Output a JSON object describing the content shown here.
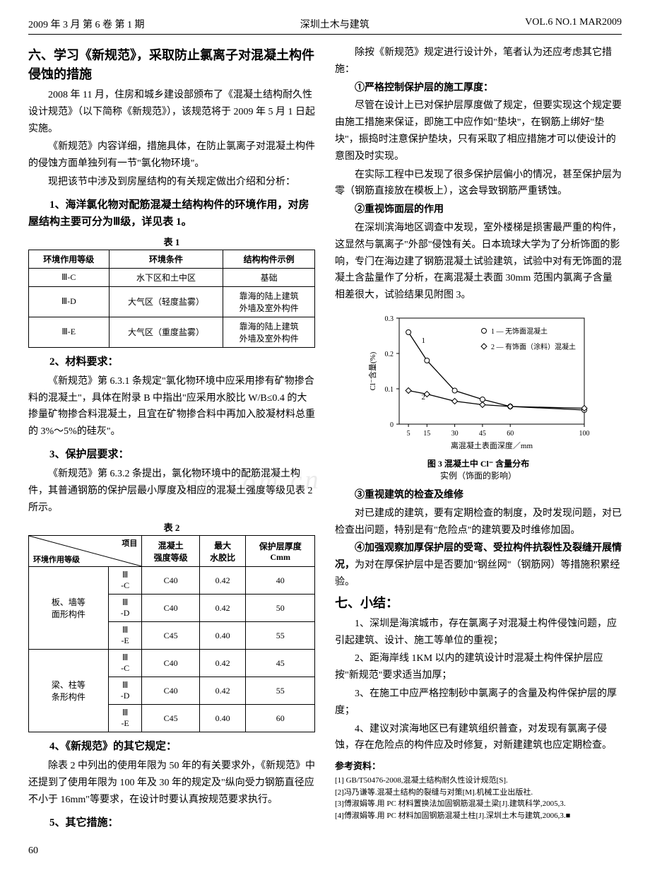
{
  "header": {
    "left": "2009 年 3 月  第 6 卷  第 1 期",
    "center": "深圳土木与建筑",
    "right": "VOL.6  NO.1  MAR2009"
  },
  "left": {
    "h2a": "六、学习《新规范》，采取防止氯离子对混凝土构件侵蚀的措施",
    "p1": "2008 年 11 月，住房和城乡建设部颁布了《混凝土结构耐久性设计规范》（以下简称《新规范》），该规范将于 2009 年 5 月 1 日起实施。",
    "p2": "《新规范》内容详细，措施具体，在防止氯离子对混凝土构件的侵蚀方面单独列有一节\"氯化物环境\"。",
    "p3": "现把该节中涉及到房屋结构的有关规定做出介绍和分析：",
    "sect1": "1、海洋氯化物对配筋混凝土结构构件的环境作用，对房屋结构主要可分为Ⅲ级，详见表 1。",
    "table1": {
      "caption": "表 1",
      "header": [
        "环境作用等级",
        "环境条件",
        "结构构件示例"
      ],
      "rows": [
        [
          "Ⅲ-C",
          "水下区和土中区",
          "基础"
        ],
        [
          "Ⅲ-D",
          "大气区（轻度盐雾）",
          "靠海的陆上建筑\n外墙及室外构件"
        ],
        [
          "Ⅲ-E",
          "大气区（重度盐雾）",
          "靠海的陆上建筑\n外墙及室外构件"
        ]
      ]
    },
    "sect2": "2、材料要求：",
    "p4": "《新规范》第 6.3.1 条规定\"氯化物环境中应采用掺有矿物掺合料的混凝土\"，具体在附录 B 中指出\"应采用水胶比 W/B≤0.4 的大掺量矿物掺合料混凝土，且宜在矿物掺合料中再加入胶凝材料总重的 3%～5%的硅灰\"。",
    "sect3": "3、保护层要求：",
    "p5": "《新规范》第 6.3.2 条提出，氯化物环境中的配筋混凝土构件，其普通钢筋的保护层最小厚度及相应的混凝土强度等级见表 2 所示。",
    "table2": {
      "caption": "表 2",
      "diag": {
        "top": "项目",
        "bottom": "环境作用等级"
      },
      "cols": [
        "混凝土\n强度等级",
        "最大\n水胶比",
        "保护层厚度\nCmm"
      ],
      "groups": [
        {
          "name": "板、墙等\n面形构件",
          "rows": [
            [
              "Ⅲ\n-C",
              "C40",
              "0.42",
              "40"
            ],
            [
              "Ⅲ\n-D",
              "C40",
              "0.42",
              "50"
            ],
            [
              "Ⅲ\n-E",
              "C45",
              "0.40",
              "55"
            ]
          ]
        },
        {
          "name": "梁、柱等\n条形构件",
          "rows": [
            [
              "Ⅲ\n-C",
              "C40",
              "0.42",
              "45"
            ],
            [
              "Ⅲ\n-D",
              "C40",
              "0.42",
              "55"
            ],
            [
              "Ⅲ\n-E",
              "C45",
              "0.40",
              "60"
            ]
          ]
        }
      ]
    },
    "sect4": "4、《新规范》的其它规定：",
    "p6": "除表 2 中列出的使用年限为 50 年的有关要求外，《新规范》中还提到了使用年限为 100 年及 30 年的规定及\"纵向受力钢筋直径应不小于 16mm\"等要求，在设计时要认真按规范要求执行。",
    "sect5": "5、其它措施："
  },
  "right": {
    "p1": "除按《新规范》规定进行设计外，笔者认为还应考虑其它措施：",
    "sub1": "①严格控制保护层的施工厚度：",
    "p2": "尽管在设计上已对保护层厚度做了规定，但要实现这个规定要由施工措施来保证，即施工中应作如\"垫块\"，在钢筋上绑好\"垫块\"，振捣时注意保护垫块，只有采取了相应措施才可以使设计的意图及时实现。",
    "p3": "在实际工程中已发现了很多保护层偏小的情况，甚至保护层为零（钢筋直接放在模板上），这会导致钢筋严重锈蚀。",
    "sub2": "②重视饰面层的作用",
    "p4": "在深圳滨海地区调查中发现，室外楼梯是损害最严重的构件，这显然与氯离子\"外部\"侵蚀有关。日本琉球大学为了分析饰面的影响，专门在海边建了钢筋混凝土试验建筑，试验中对有无饰面的混凝土含盐量作了分析，在离混凝土表面 30mm 范围内氯离子含量相差很大，试验结果见附图 3。",
    "fig3": {
      "caption": "图 3 混凝土中 Cl⁻ 含量分布",
      "subcaption": "实例（饰面的影响）",
      "xlabel": "离混凝土表面深度／mm",
      "ylabel": "Cl⁻含量(%)",
      "legend": [
        "1 — 无饰面混凝土",
        "2 — 有饰面（涂料）混凝土"
      ],
      "line_color": "#000",
      "bg": "#ffffff",
      "xlim": [
        0,
        100
      ],
      "ylim": [
        0,
        0.3
      ],
      "xticks": [
        5,
        15,
        30,
        45,
        60,
        100
      ],
      "yticks": [
        0,
        0.1,
        0.2,
        0.3
      ],
      "series": [
        {
          "name": "1",
          "marker": "o",
          "points": [
            [
              5,
              0.26
            ],
            [
              15,
              0.18
            ],
            [
              30,
              0.095
            ],
            [
              45,
              0.07
            ],
            [
              60,
              0.05
            ],
            [
              100,
              0.04
            ]
          ]
        },
        {
          "name": "2",
          "marker": "d",
          "points": [
            [
              5,
              0.095
            ],
            [
              15,
              0.085
            ],
            [
              30,
              0.065
            ],
            [
              45,
              0.055
            ],
            [
              60,
              0.05
            ],
            [
              100,
              0.045
            ]
          ]
        }
      ]
    },
    "sub3": "③重视建筑的检查及维修",
    "p5": "对已建成的建筑，要有定期检查的制度，及时发现问题，对已检查出问题，特别是有\"危险点\"的建筑要及时维修加固。",
    "sub4": "④加强观察加厚保护层的受弯、受拉构件抗裂性及裂缝开展情况，",
    "p6": "为对在厚保护层中是否要加\"钢丝网\"（钢筋网）等措施积累经验。",
    "h7": "七、小结：",
    "c1": "1、深圳是海滨城市，存在氯离子对混凝土构件侵蚀问题，应引起建筑、设计、施工等单位的重视；",
    "c2": "2、距海岸线 1KM 以内的建筑设计时混凝土构件保护层应按\"新规范\"要求适当加厚；",
    "c3": "3、在施工中应严格控制砂中氯离子的含量及构件保护层的厚度；",
    "c4": "4、建议对滨海地区已有建筑组织普查，对发现有氯离子侵蚀，存在危险点的构件应及时修复，对新建建筑也应定期检查。",
    "refs": {
      "title": "参考资料：",
      "items": [
        "[1] GB/T50476-2008,混凝土结构耐久性设计规范[S].",
        "[2]冯乃谦等.混凝土结构的裂缝与对策[M].机械工业出版社.",
        "[3]傅淑娟等.用 PC 材料置换法加固钢筋混凝土梁[J].建筑科学,2005,3.",
        "[4]傅淑娟等.用 PC 材料加固钢筋混凝土柱[J].深圳土木与建筑,2006,3.■"
      ]
    }
  },
  "pagenum": "60",
  "watermark": "xin.com.cn"
}
